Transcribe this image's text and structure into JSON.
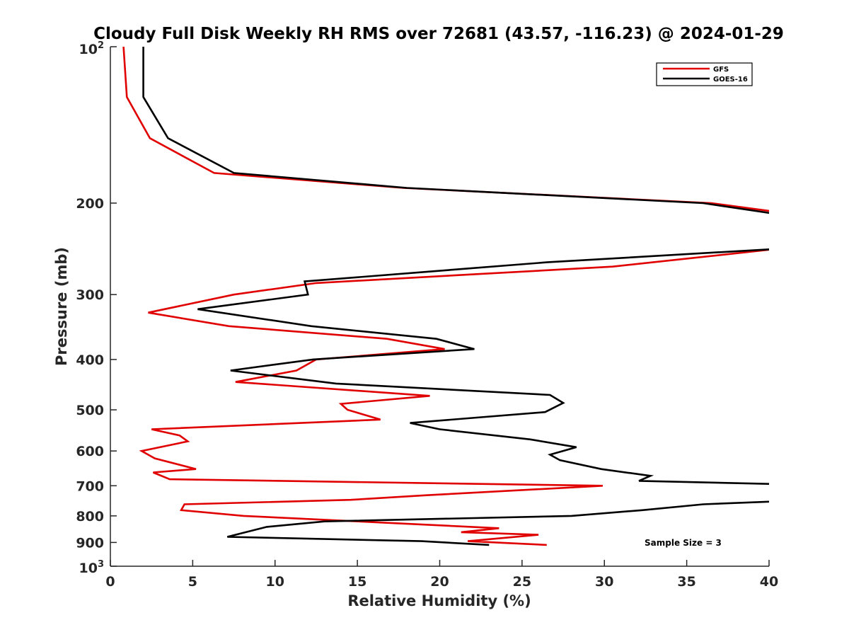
{
  "chart_data": {
    "type": "line",
    "title": "Cloudy Full Disk Weekly RH RMS over 72681 (43.57, -116.23) @ 2024-01-29",
    "xlabel": "Relative Humidity (%)",
    "ylabel": "Pressure (mb)",
    "xlim": [
      0,
      40
    ],
    "ylim": [
      100,
      1000
    ],
    "y_scale": "log",
    "y_reversed": true,
    "x_ticks": [
      0,
      5,
      10,
      15,
      20,
      25,
      30,
      35,
      40
    ],
    "y_ticks": [
      200,
      300,
      400,
      500,
      600,
      700,
      800,
      900
    ],
    "y_tick_labels": [
      "200",
      "300",
      "400",
      "500",
      "600",
      "700",
      "800",
      "900"
    ],
    "y_end_labels": {
      "top_base": "10",
      "top_exp": "2",
      "bottom_base": "10",
      "bottom_exp": "3"
    },
    "legend_position": "top-right",
    "annotation": "Sample Size = 3",
    "series": [
      {
        "name": "GFS",
        "color": "#e00000",
        "points": [
          [
            0.8,
            100
          ],
          [
            1.0,
            125
          ],
          [
            2.4,
            150
          ],
          [
            6.3,
            175
          ],
          [
            17.8,
            187
          ],
          [
            36.5,
            200
          ],
          [
            40.5,
            208
          ],
          [
            40.5,
            245
          ],
          [
            30.5,
            265
          ],
          [
            12.5,
            285
          ],
          [
            7.5,
            300
          ],
          [
            2.3,
            325
          ],
          [
            7.2,
            345
          ],
          [
            16.8,
            365
          ],
          [
            20.3,
            382
          ],
          [
            12.5,
            400
          ],
          [
            11.3,
            420
          ],
          [
            7.6,
            442
          ],
          [
            19.4,
            470
          ],
          [
            14.0,
            487
          ],
          [
            14.4,
            500
          ],
          [
            16.4,
            522
          ],
          [
            2.5,
            545
          ],
          [
            4.2,
            560
          ],
          [
            4.7,
            575
          ],
          [
            1.9,
            600
          ],
          [
            2.7,
            620
          ],
          [
            5.2,
            650
          ],
          [
            2.6,
            660
          ],
          [
            3.6,
            680
          ],
          [
            29.9,
            700
          ],
          [
            19.2,
            730
          ],
          [
            14.6,
            745
          ],
          [
            4.5,
            760
          ],
          [
            4.3,
            780
          ],
          [
            8.1,
            800
          ],
          [
            23.6,
            845
          ],
          [
            21.3,
            860
          ],
          [
            26.0,
            870
          ],
          [
            21.7,
            895
          ],
          [
            26.5,
            910
          ]
        ]
      },
      {
        "name": "GOES-16",
        "color": "#000000",
        "points": [
          [
            2.0,
            100
          ],
          [
            2.0,
            125
          ],
          [
            3.5,
            150
          ],
          [
            7.5,
            175
          ],
          [
            18.0,
            187
          ],
          [
            36.0,
            200
          ],
          [
            40.5,
            210
          ],
          [
            40.5,
            245
          ],
          [
            26.5,
            260
          ],
          [
            11.8,
            283
          ],
          [
            12.0,
            300
          ],
          [
            5.3,
            320
          ],
          [
            12.2,
            345
          ],
          [
            19.8,
            365
          ],
          [
            22.1,
            382
          ],
          [
            12.3,
            400
          ],
          [
            7.3,
            420
          ],
          [
            13.7,
            445
          ],
          [
            26.7,
            468
          ],
          [
            27.5,
            485
          ],
          [
            26.4,
            505
          ],
          [
            18.2,
            530
          ],
          [
            20.0,
            545
          ],
          [
            25.5,
            570
          ],
          [
            28.3,
            590
          ],
          [
            26.7,
            610
          ],
          [
            27.3,
            625
          ],
          [
            29.8,
            650
          ],
          [
            32.8,
            670
          ],
          [
            32.1,
            685
          ],
          [
            40.5,
            695
          ],
          [
            40.5,
            750
          ],
          [
            36.0,
            760
          ],
          [
            32.3,
            780
          ],
          [
            28.0,
            800
          ],
          [
            13.0,
            820
          ],
          [
            9.5,
            840
          ],
          [
            7.1,
            878
          ],
          [
            18.9,
            895
          ],
          [
            23.0,
            910
          ]
        ]
      }
    ]
  }
}
